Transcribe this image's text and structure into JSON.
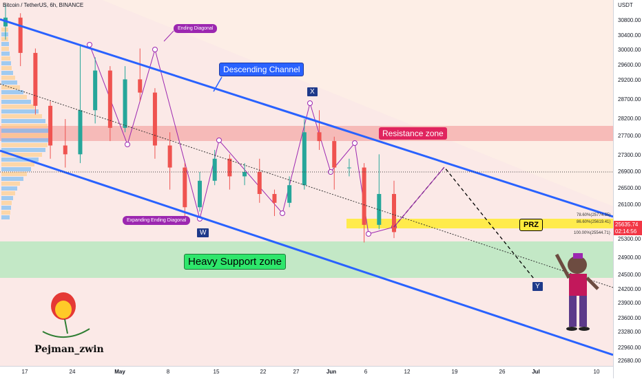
{
  "header": {
    "title": "Bitcoin / TetherUS, 6h, BINANCE"
  },
  "price_axis": {
    "unit": "USDT",
    "ticks": [
      "30800.00",
      "30400.00",
      "30000.00",
      "29600.00",
      "29200.00",
      "28700.00",
      "28200.00",
      "27700.00",
      "27300.00",
      "26900.00",
      "26500.00",
      "26100.00",
      "25300.00",
      "24900.00",
      "24500.00",
      "24200.00",
      "23900.00",
      "23600.00",
      "23280.00",
      "22960.00",
      "22680.00"
    ],
    "last_price": "25635.74",
    "countdown": "02:14:56"
  },
  "time_axis": {
    "ticks": [
      "17",
      "24",
      "May",
      "8",
      "15",
      "22",
      "27",
      "Jun",
      "6",
      "12",
      "19",
      "26",
      "Jul",
      "10"
    ]
  },
  "annotations": {
    "descending_channel": "Descending Channel",
    "resistance_zone": "Resistance zone",
    "support_zone": "Heavy Support zone",
    "prz": "PRZ",
    "ending_diagonal": "Ending Diagonal",
    "expanding_ending_diagonal": "Expanding Ending Diagonal",
    "wave_x": "X",
    "wave_w": "W",
    "wave_y": "Y",
    "fib_786": "78.60%(25774.55)",
    "fib_866": "86.60%(25619.41)",
    "fib_100": "100.00%(25544.71)",
    "brand": "Pejman_zwin"
  },
  "colors": {
    "channel": "#2962ff",
    "resistance": "#f4a9a8",
    "support": "#b9e8c0",
    "prz": "#ffeb3b",
    "candle_up": "#26a69a",
    "candle_down": "#ef5350",
    "wave": "#9c27b0",
    "price_tag": "#f23645"
  },
  "chart_data": {
    "type": "candlestick",
    "title": "Bitcoin / TetherUS, 6h, BINANCE",
    "ylabel": "USDT",
    "ylim": [
      22600,
      30900
    ],
    "series": [
      {
        "values": [
          {
            "x": "Apr 14",
            "o": 30300,
            "h": 30800,
            "l": 30000,
            "c": 30500
          },
          {
            "x": "Apr 17",
            "o": 30500,
            "h": 30600,
            "l": 29400,
            "c": 29700
          },
          {
            "x": "Apr 20",
            "o": 29700,
            "h": 29800,
            "l": 28300,
            "c": 28500
          },
          {
            "x": "Apr 22",
            "o": 28500,
            "h": 28600,
            "l": 27300,
            "c": 27600
          },
          {
            "x": "Apr 24",
            "o": 27600,
            "h": 28200,
            "l": 27100,
            "c": 27400
          },
          {
            "x": "Apr 26",
            "o": 27400,
            "h": 29900,
            "l": 27200,
            "c": 28400
          },
          {
            "x": "Apr 28",
            "o": 28400,
            "h": 29600,
            "l": 28100,
            "c": 29300
          },
          {
            "x": "May 1",
            "o": 29300,
            "h": 29400,
            "l": 27700,
            "c": 28000
          },
          {
            "x": "May 3",
            "o": 28000,
            "h": 29400,
            "l": 27900,
            "c": 29100
          },
          {
            "x": "May 6",
            "o": 29100,
            "h": 29800,
            "l": 28600,
            "c": 28800
          },
          {
            "x": "May 8",
            "o": 28800,
            "h": 28900,
            "l": 27300,
            "c": 27600
          },
          {
            "x": "May 10",
            "o": 27600,
            "h": 27900,
            "l": 26600,
            "c": 27100
          },
          {
            "x": "May 12",
            "o": 27100,
            "h": 27200,
            "l": 25900,
            "c": 26200
          },
          {
            "x": "May 14",
            "o": 26200,
            "h": 27000,
            "l": 26100,
            "c": 26800
          },
          {
            "x": "May 16",
            "o": 26800,
            "h": 27500,
            "l": 26700,
            "c": 27300
          },
          {
            "x": "May 18",
            "o": 27300,
            "h": 27400,
            "l": 26600,
            "c": 26900
          },
          {
            "x": "May 20",
            "o": 26900,
            "h": 27200,
            "l": 26700,
            "c": 27000
          },
          {
            "x": "May 22",
            "o": 27000,
            "h": 27300,
            "l": 26300,
            "c": 26500
          },
          {
            "x": "May 24",
            "o": 26500,
            "h": 26600,
            "l": 26000,
            "c": 26300
          },
          {
            "x": "May 26",
            "o": 26300,
            "h": 26900,
            "l": 26200,
            "c": 26700
          },
          {
            "x": "May 28",
            "o": 26700,
            "h": 28200,
            "l": 26600,
            "c": 27900
          },
          {
            "x": "May 30",
            "o": 27900,
            "h": 28400,
            "l": 27500,
            "c": 27700
          },
          {
            "x": "Jun 1",
            "o": 27700,
            "h": 27800,
            "l": 26600,
            "c": 27100
          },
          {
            "x": "Jun 3",
            "o": 27100,
            "h": 27300,
            "l": 26900,
            "c": 27100
          },
          {
            "x": "Jun 5",
            "o": 27100,
            "h": 27200,
            "l": 25400,
            "c": 25800
          },
          {
            "x": "Jun 7",
            "o": 25800,
            "h": 27400,
            "l": 25700,
            "c": 26500
          },
          {
            "x": "Jun 9",
            "o": 26500,
            "h": 26800,
            "l": 25500,
            "c": 25636
          }
        ]
      }
    ]
  }
}
